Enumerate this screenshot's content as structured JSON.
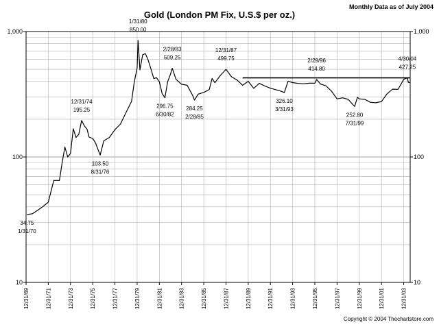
{
  "header": {
    "note": "Monthly Data as of July 2004",
    "title": "Gold (London PM Fix, U.S.$ per oz.)",
    "copyright": "Copyright © 2004 Thechartstore.com"
  },
  "chart_data": {
    "type": "line",
    "title": "Gold (London PM Fix, U.S.$ per oz.)",
    "xlabel": "",
    "ylabel": "",
    "y_scale": "log",
    "ylim": [
      10,
      1000
    ],
    "y_ticks": [
      {
        "value": 10,
        "label": "10"
      },
      {
        "value": 100,
        "label": "100"
      },
      {
        "value": 1000,
        "label": "1,000"
      }
    ],
    "xlim": [
      "1969-12-31",
      "2004-07-31"
    ],
    "x_ticks": [
      "12/31/69",
      "12/31/71",
      "12/31/73",
      "12/31/75",
      "12/31/77",
      "12/31/79",
      "12/31/81",
      "12/31/83",
      "12/31/85",
      "12/31/87",
      "12/31/89",
      "12/31/91",
      "12/31/93",
      "12/31/95",
      "12/31/97",
      "12/31/99",
      "12/31/01",
      "12/31/03"
    ],
    "grid": true,
    "reference_line": {
      "value": 427.25,
      "from": "1989-06-30",
      "to": "2004-07-31"
    },
    "series": [
      {
        "points": [
          [
            "1970-01-31",
            34.75
          ],
          [
            "1970-07-31",
            35.3
          ],
          [
            "1970-12-31",
            37.4
          ],
          [
            "1971-06-30",
            40.1
          ],
          [
            "1971-12-31",
            43.6
          ],
          [
            "1972-06-30",
            65.0
          ],
          [
            "1972-12-31",
            64.9
          ],
          [
            "1973-03-31",
            90.0
          ],
          [
            "1973-06-30",
            120.0
          ],
          [
            "1973-09-30",
            100.0
          ],
          [
            "1973-12-31",
            106.7
          ],
          [
            "1974-03-31",
            168.0
          ],
          [
            "1974-06-30",
            143.0
          ],
          [
            "1974-09-30",
            151.8
          ],
          [
            "1974-12-31",
            195.25
          ],
          [
            "1975-03-31",
            177.0
          ],
          [
            "1975-06-30",
            166.3
          ],
          [
            "1975-08-31",
            144.0
          ],
          [
            "1975-12-31",
            140.3
          ],
          [
            "1976-03-31",
            129.6
          ],
          [
            "1976-08-31",
            103.5
          ],
          [
            "1976-12-31",
            134.5
          ],
          [
            "1977-06-30",
            143.0
          ],
          [
            "1977-12-31",
            164.9
          ],
          [
            "1978-06-30",
            183.0
          ],
          [
            "1978-12-31",
            226.0
          ],
          [
            "1979-06-30",
            277.5
          ],
          [
            "1979-09-30",
            397.0
          ],
          [
            "1979-12-31",
            512.0
          ],
          [
            "1980-01-31",
            850.0
          ],
          [
            "1980-03-31",
            494.5
          ],
          [
            "1980-06-30",
            653.0
          ],
          [
            "1980-09-30",
            666.8
          ],
          [
            "1980-12-31",
            589.75
          ],
          [
            "1981-03-31",
            499.5
          ],
          [
            "1981-06-30",
            422.0
          ],
          [
            "1981-09-30",
            428.75
          ],
          [
            "1981-12-31",
            397.5
          ],
          [
            "1982-03-31",
            320.0
          ],
          [
            "1982-06-30",
            296.75
          ],
          [
            "1982-09-30",
            397.0
          ],
          [
            "1982-12-31",
            456.9
          ],
          [
            "1983-02-28",
            509.25
          ],
          [
            "1983-06-30",
            416.0
          ],
          [
            "1983-12-31",
            380.0
          ],
          [
            "1984-06-30",
            373.0
          ],
          [
            "1984-12-31",
            309.0
          ],
          [
            "1985-02-28",
            284.25
          ],
          [
            "1985-06-30",
            317.0
          ],
          [
            "1985-12-31",
            327.0
          ],
          [
            "1986-06-30",
            345.0
          ],
          [
            "1986-09-30",
            423.0
          ],
          [
            "1986-12-31",
            390.9
          ],
          [
            "1987-06-30",
            447.0
          ],
          [
            "1987-12-31",
            499.75
          ],
          [
            "1988-06-30",
            436.0
          ],
          [
            "1988-12-31",
            410.15
          ],
          [
            "1989-06-30",
            373.0
          ],
          [
            "1989-12-31",
            401.0
          ],
          [
            "1990-06-30",
            352.2
          ],
          [
            "1990-12-31",
            386.2
          ],
          [
            "1991-06-30",
            368.4
          ],
          [
            "1991-12-31",
            353.2
          ],
          [
            "1992-06-30",
            343.4
          ],
          [
            "1992-12-31",
            333.25
          ],
          [
            "1993-03-31",
            326.1
          ],
          [
            "1993-07-31",
            401.0
          ],
          [
            "1993-12-31",
            391.75
          ],
          [
            "1994-06-30",
            385.75
          ],
          [
            "1994-12-31",
            383.25
          ],
          [
            "1995-06-30",
            387.05
          ],
          [
            "1995-12-31",
            387.0
          ],
          [
            "1996-02-29",
            414.8
          ],
          [
            "1996-06-30",
            382.0
          ],
          [
            "1996-12-31",
            369.25
          ],
          [
            "1997-06-30",
            334.6
          ],
          [
            "1997-12-31",
            290.2
          ],
          [
            "1998-06-30",
            296.3
          ],
          [
            "1998-12-31",
            287.8
          ],
          [
            "1999-07-31",
            252.8
          ],
          [
            "1999-10-31",
            299.1
          ],
          [
            "1999-12-31",
            290.25
          ],
          [
            "2000-06-30",
            288.15
          ],
          [
            "2000-12-31",
            272.65
          ],
          [
            "2001-06-30",
            270.6
          ],
          [
            "2001-12-31",
            276.5
          ],
          [
            "2002-06-30",
            318.5
          ],
          [
            "2002-12-31",
            347.2
          ],
          [
            "2003-06-30",
            346.0
          ],
          [
            "2003-12-31",
            416.25
          ],
          [
            "2004-04-30",
            427.25
          ],
          [
            "2004-05-31",
            393.25
          ],
          [
            "2004-07-31",
            391.4
          ]
        ]
      }
    ],
    "annotations": [
      {
        "date": "1/31/70",
        "value": "34.75",
        "x": "1970-01-31",
        "y": 34.75,
        "pos": "below"
      },
      {
        "date": "12/31/74",
        "value": "195.25",
        "x": "1974-12-31",
        "y": 195.25,
        "pos": "above"
      },
      {
        "date": "8/31/76",
        "value": "103.50",
        "x": "1976-08-31",
        "y": 103.5,
        "pos": "below"
      },
      {
        "date": "1/31/80",
        "value": "850.00",
        "x": "1980-01-31",
        "y": 850.0,
        "pos": "above"
      },
      {
        "date": "6/30/82",
        "value": "296.75",
        "x": "1982-06-30",
        "y": 296.75,
        "pos": "below"
      },
      {
        "date": "2/28/83",
        "value": "509.25",
        "x": "1983-02-28",
        "y": 509.25,
        "pos": "above"
      },
      {
        "date": "2/28/85",
        "value": "284.25",
        "x": "1985-02-28",
        "y": 284.25,
        "pos": "below"
      },
      {
        "date": "12/31/87",
        "value": "499.75",
        "x": "1987-12-31",
        "y": 499.75,
        "pos": "above"
      },
      {
        "date": "3/31/93",
        "value": "326.10",
        "x": "1993-03-31",
        "y": 326.1,
        "pos": "below"
      },
      {
        "date": "2/29/96",
        "value": "414.80",
        "x": "1996-02-29",
        "y": 414.8,
        "pos": "above"
      },
      {
        "date": "7/31/99",
        "value": "252.80",
        "x": "1999-07-31",
        "y": 252.8,
        "pos": "below"
      },
      {
        "date": "4/30/04",
        "value": "427.25",
        "x": "2004-04-30",
        "y": 427.25,
        "pos": "above"
      }
    ],
    "colors": {
      "line": "#000000",
      "grid": "#b0b0b0",
      "frame": "#000000"
    }
  }
}
